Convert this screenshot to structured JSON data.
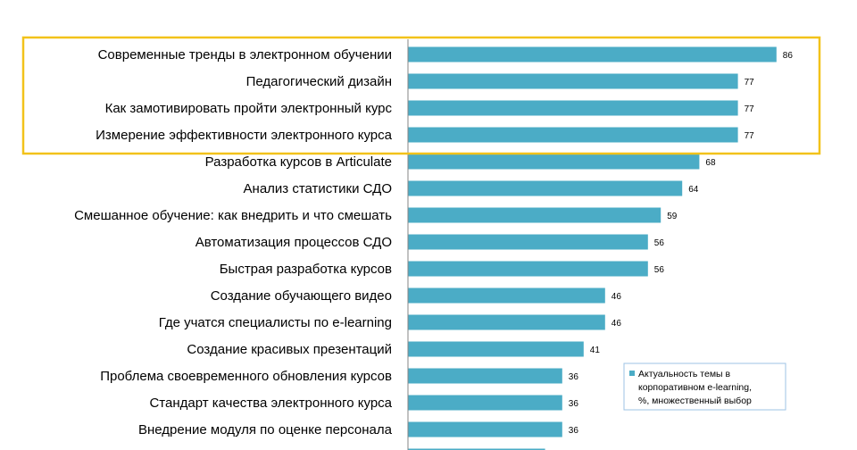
{
  "chart_data": {
    "type": "bar",
    "orientation": "horizontal",
    "categories": [
      "Современные тренды в электронном обучении",
      "Педагогический дизайн",
      "Как замотивировать пройти электронный курс",
      "Измерение эффективности электронного курса",
      "Разработка курсов в Articulate",
      "Анализ статистики СДО",
      "Смешанное обучение: как внедрить и что смешать",
      "Автоматизация процессов СДО",
      "Быстрая разработка курсов",
      "Создание обучающего видео",
      "Где учатся специалисты по e-learning",
      "Создание красивых презентаций",
      "Проблема своевременного обновления курсов",
      "Стандарт качества электронного курса",
      "Внедрение модуля по оценке персонала",
      ""
    ],
    "series": [
      {
        "name": "Актуальность темы в корпоративном e-learning, %, множественный выбор",
        "values": [
          86,
          77,
          77,
          77,
          68,
          64,
          59,
          56,
          56,
          46,
          46,
          41,
          36,
          36,
          36,
          32
        ]
      }
    ],
    "data_labels": [
      "86",
      "77",
      "77",
      "77",
      "68",
      "64",
      "59",
      "56",
      "56",
      "46",
      "46",
      "41",
      "36",
      "36",
      "36",
      ""
    ],
    "xlim": [
      0,
      100
    ],
    "grid": false,
    "highlighted_categories": [
      0,
      1,
      2,
      3
    ],
    "legend": {
      "position": "bottom-right",
      "lines": [
        "Актуальность темы в",
        "корпоративном e-learning,",
        "%, множественный выбор"
      ]
    },
    "colors": {
      "bar": "#4BACC6",
      "highlight_frame": "#F2C21A",
      "axis": "#868686",
      "legend_border": "#9DC3E6"
    }
  }
}
